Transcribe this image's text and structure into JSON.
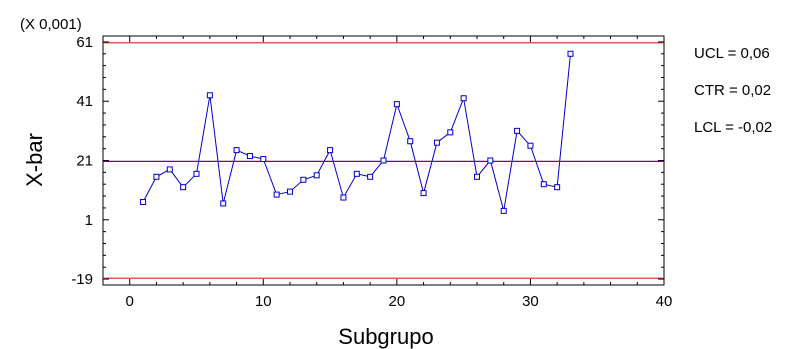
{
  "chart_data": {
    "type": "line",
    "scale_note": "(X 0,001)",
    "xlabel": "Subgrupo",
    "ylabel": "X-bar",
    "xlim": [
      -2,
      40
    ],
    "ylim": [
      -21,
      63
    ],
    "x_ticks": [
      0,
      10,
      20,
      30,
      40
    ],
    "y_ticks": [
      -19,
      1,
      21,
      41,
      61
    ],
    "grid": false,
    "control_lines": {
      "ucl": 60.7,
      "ctr": 20.7,
      "lcl": -18.7
    },
    "control_labels": [
      {
        "id": "ucl",
        "text": "UCL = 0,06"
      },
      {
        "id": "ctr",
        "text": "CTR = 0,02"
      },
      {
        "id": "lcl",
        "text": "LCL = -0,02"
      }
    ],
    "colors": {
      "series": "#0000cc",
      "limit": "#e02020",
      "center": "#800080",
      "axis": "#000000"
    },
    "series": [
      {
        "x": [
          1,
          2,
          3,
          4,
          5,
          6,
          7,
          8,
          9,
          10,
          11,
          12,
          13,
          14,
          15,
          16,
          17,
          18,
          19,
          20,
          21,
          22,
          23,
          24,
          25,
          26,
          27,
          28,
          29,
          30,
          31,
          32,
          33
        ],
        "values": [
          7,
          15.5,
          18,
          12,
          16.5,
          43,
          6.5,
          24.5,
          22.5,
          21.5,
          9.5,
          10.5,
          14.5,
          16,
          24.5,
          8.5,
          16.5,
          15.5,
          21,
          40,
          27.5,
          10,
          27,
          30.5,
          42,
          15.5,
          21,
          4,
          31,
          26,
          13,
          12,
          57
        ]
      }
    ]
  }
}
